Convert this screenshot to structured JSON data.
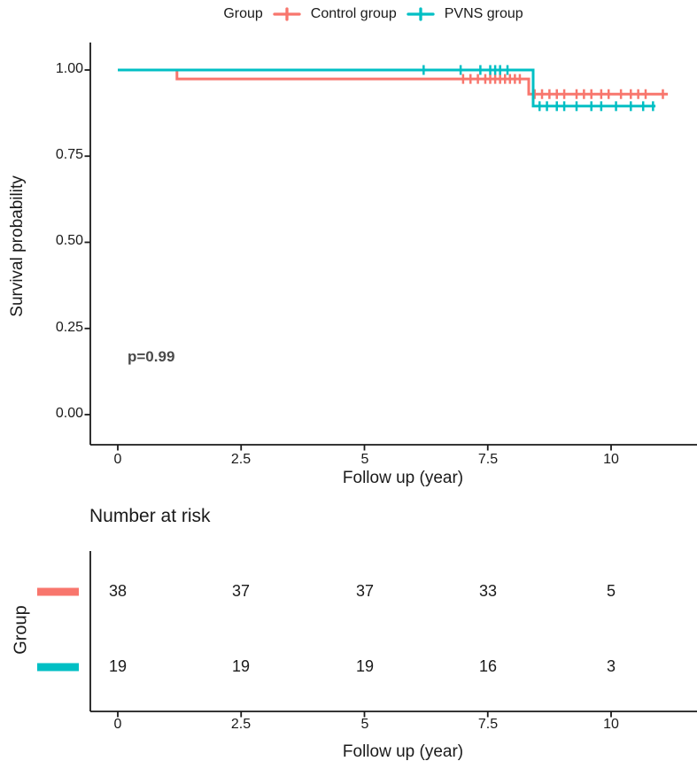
{
  "legend": {
    "title": "Group",
    "items": [
      {
        "label": "Control group",
        "color": "#F8766D"
      },
      {
        "label": "PVNS group",
        "color": "#00BFC4"
      }
    ]
  },
  "chart_data": {
    "type": "line",
    "subtype": "kaplan-meier-step-curves",
    "title": "",
    "xlabel": "Follow up (year)",
    "ylabel": "Survival probability",
    "xlim": [
      0,
      11.8
    ],
    "ylim": [
      0,
      1
    ],
    "grid": false,
    "legend_position": "top",
    "pvalue_label": "p=0.99",
    "x_ticks": [
      {
        "value": 0,
        "label": "0"
      },
      {
        "value": 2.5,
        "label": "2.5"
      },
      {
        "value": 5,
        "label": "5"
      },
      {
        "value": 7.5,
        "label": "7.5"
      },
      {
        "value": 10,
        "label": "10"
      }
    ],
    "y_ticks": [
      {
        "value": 1.0,
        "label": "1.00"
      },
      {
        "value": 0.75,
        "label": "0.75"
      },
      {
        "value": 0.5,
        "label": "0.50"
      },
      {
        "value": 0.25,
        "label": "0.25"
      },
      {
        "value": 0.0,
        "label": "0.00"
      }
    ],
    "series": [
      {
        "name": "Control group",
        "color": "#F8766D",
        "steps": [
          [
            0,
            1.0
          ],
          [
            1.2,
            1.0
          ],
          [
            1.2,
            0.974
          ],
          [
            8.33,
            0.974
          ],
          [
            8.33,
            0.93
          ],
          [
            11.15,
            0.93
          ]
        ],
        "censor_marks": [
          [
            7.0,
            0.974
          ],
          [
            7.15,
            0.974
          ],
          [
            7.3,
            0.974
          ],
          [
            7.45,
            0.974
          ],
          [
            7.55,
            0.974
          ],
          [
            7.65,
            0.974
          ],
          [
            7.75,
            0.974
          ],
          [
            7.85,
            0.974
          ],
          [
            7.95,
            0.974
          ],
          [
            8.05,
            0.974
          ],
          [
            8.15,
            0.974
          ],
          [
            8.45,
            0.93
          ],
          [
            8.6,
            0.93
          ],
          [
            8.75,
            0.93
          ],
          [
            8.9,
            0.93
          ],
          [
            9.05,
            0.93
          ],
          [
            9.3,
            0.93
          ],
          [
            9.45,
            0.93
          ],
          [
            9.6,
            0.93
          ],
          [
            9.8,
            0.93
          ],
          [
            9.95,
            0.93
          ],
          [
            10.2,
            0.93
          ],
          [
            10.4,
            0.93
          ],
          [
            10.55,
            0.93
          ],
          [
            10.7,
            0.93
          ],
          [
            11.05,
            0.93
          ]
        ]
      },
      {
        "name": "PVNS group",
        "color": "#00BFC4",
        "steps": [
          [
            0,
            1.0
          ],
          [
            8.42,
            1.0
          ],
          [
            8.42,
            0.895
          ],
          [
            10.9,
            0.895
          ]
        ],
        "censor_marks": [
          [
            6.2,
            1.0
          ],
          [
            6.95,
            1.0
          ],
          [
            7.35,
            1.0
          ],
          [
            7.55,
            1.0
          ],
          [
            7.65,
            1.0
          ],
          [
            7.75,
            1.0
          ],
          [
            7.9,
            1.0
          ],
          [
            8.55,
            0.895
          ],
          [
            8.7,
            0.895
          ],
          [
            8.9,
            0.895
          ],
          [
            9.05,
            0.895
          ],
          [
            9.3,
            0.895
          ],
          [
            9.6,
            0.895
          ],
          [
            9.8,
            0.895
          ],
          [
            10.1,
            0.895
          ],
          [
            10.4,
            0.895
          ],
          [
            10.65,
            0.895
          ],
          [
            10.85,
            0.895
          ]
        ]
      }
    ]
  },
  "risk_table": {
    "title": "Number at risk",
    "ylabel": "Group",
    "xlabel": "Follow up (year)",
    "x_ticks": [
      "0",
      "2.5",
      "5",
      "7.5",
      "10"
    ],
    "rows": [
      {
        "group": "Control group",
        "color": "#F8766D",
        "counts": [
          "38",
          "37",
          "37",
          "33",
          "5"
        ]
      },
      {
        "group": "PVNS group",
        "color": "#00BFC4",
        "counts": [
          "19",
          "19",
          "19",
          "16",
          "3"
        ]
      }
    ]
  }
}
